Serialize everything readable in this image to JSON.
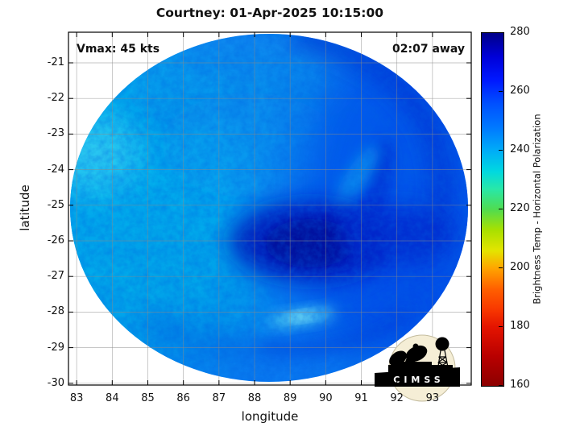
{
  "title": "Courtney: 01-Apr-2025 10:15:00",
  "annotations": {
    "vmax": "Vmax: 45 kts",
    "time_away": "02:07 away"
  },
  "axes": {
    "x": {
      "label": "longitude",
      "min": 82.77,
      "max": 94.09,
      "ticks": [
        83,
        84,
        85,
        86,
        87,
        88,
        89,
        90,
        91,
        92,
        93
      ]
    },
    "y": {
      "label": "latitude",
      "min": -30.05,
      "max": -20.14,
      "ticks": [
        -21,
        -22,
        -23,
        -24,
        -25,
        -26,
        -27,
        -28,
        -29,
        -30
      ]
    }
  },
  "colorbar": {
    "label": "Brightness Temp - Horizontal Polarization",
    "min": 160,
    "max": 280,
    "ticks": [
      280,
      260,
      240,
      220,
      200,
      180,
      160
    ],
    "stops": [
      {
        "v": 280,
        "c": "#000088"
      },
      {
        "v": 272,
        "c": "#0000d8"
      },
      {
        "v": 264,
        "c": "#0018ff"
      },
      {
        "v": 256,
        "c": "#0050ff"
      },
      {
        "v": 248,
        "c": "#0078ff"
      },
      {
        "v": 240,
        "c": "#00acf8"
      },
      {
        "v": 233,
        "c": "#00d8e0"
      },
      {
        "v": 227,
        "c": "#28e8a8"
      },
      {
        "v": 220,
        "c": "#50dc50"
      },
      {
        "v": 213,
        "c": "#a8e000"
      },
      {
        "v": 206,
        "c": "#e4e400"
      },
      {
        "v": 200,
        "c": "#ffa400"
      },
      {
        "v": 193,
        "c": "#ff6000"
      },
      {
        "v": 186,
        "c": "#f83800"
      },
      {
        "v": 180,
        "c": "#e41400"
      },
      {
        "v": 170,
        "c": "#b80000"
      },
      {
        "v": 160,
        "c": "#8c0000"
      }
    ]
  },
  "logo": {
    "text": "CIMSS"
  },
  "colors": {
    "background": "#ffffff",
    "axis": "#000000",
    "grid": "#8a8a8a",
    "text": "#111111",
    "disk_base": "#0b7cf2",
    "disk_cyan_west": "#00b4ee",
    "disk_dark_core": "#000d98",
    "logo_circle": "#f5eed6"
  },
  "chart_data": {
    "type": "heatmap",
    "title": "Courtney: 01-Apr-2025 10:15:00",
    "xlabel": "longitude",
    "ylabel": "latitude",
    "xlim": [
      82.77,
      94.09
    ],
    "ylim": [
      -30.05,
      -20.14
    ],
    "xticks": [
      83,
      84,
      85,
      86,
      87,
      88,
      89,
      90,
      91,
      92,
      93
    ],
    "yticks": [
      -21,
      -22,
      -23,
      -24,
      -25,
      -26,
      -27,
      -28,
      -29,
      -30
    ],
    "grid": true,
    "colorbar": {
      "label": "Brightness Temp - Horizontal Polarization",
      "range": [
        160,
        280
      ],
      "ticks": [
        160,
        180,
        200,
        220,
        240,
        260,
        280
      ],
      "colormap": "jet reversed: 280=dark navy blue, 260=blue, 240=cyan, 220=green, 200=orange, 180=red, 160=dark red",
      "position": "right"
    },
    "storm": {
      "name": "Courtney",
      "vmax_kts": 45,
      "time_until_valid": "02:07 away"
    },
    "swath": {
      "shape": "ellipse",
      "center_lon": 88.4,
      "center_lat": -25.1,
      "radius_lon_deg": 5.6,
      "radius_lat_deg": 4.9,
      "note": "circular microwave swath; white outside"
    },
    "features": [
      {
        "desc": "dark navy central blob (highest Tb) south-east of center",
        "lon": 88.3,
        "lat": -26.0,
        "tb_K": 275
      },
      {
        "desc": "dark band extension eastward from core",
        "lon": 90.3,
        "lat": -25.9,
        "tb_K": 270
      },
      {
        "desc": "curved dark outer band along north-east and east edge",
        "lon": 91.2,
        "lat": -23.5,
        "tb_K": 267
      },
      {
        "desc": "inner light-blue moat between core and east band",
        "lon": 90.0,
        "lat": -24.2,
        "tb_K": 252
      },
      {
        "desc": "light cyan western sector with speckled texture",
        "lon": 84.0,
        "lat": -24.3,
        "tb_K": 240
      },
      {
        "desc": "brightest cyan patch far west edge",
        "lon": 83.3,
        "lat": -23.6,
        "tb_K": 236
      },
      {
        "desc": "bright cyan streak south of center",
        "lon": 88.6,
        "lat": -28.2,
        "tb_K": 234
      },
      {
        "desc": "ambient disk blue",
        "lon": 87.0,
        "lat": -22.5,
        "tb_K": 252
      },
      {
        "desc": "spiral band arcs across southern disk",
        "lon": 87.5,
        "lat": -28.8,
        "tb_K": 258
      }
    ]
  }
}
